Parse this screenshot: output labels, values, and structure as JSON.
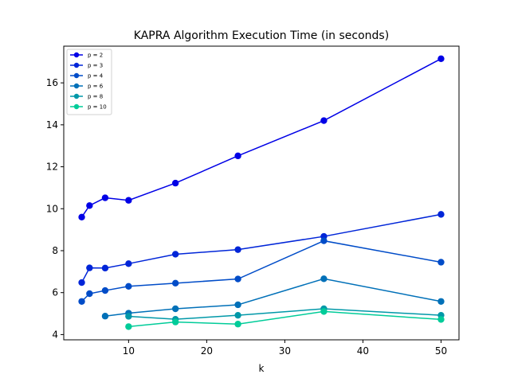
{
  "chart_data": {
    "type": "line",
    "title": "KAPRA Algorithm Execution Time (in seconds)",
    "xlabel": "k",
    "ylabel": "",
    "xlim": [
      1.7,
      52.3
    ],
    "ylim": [
      3.75,
      17.75
    ],
    "xticks": [
      10,
      20,
      30,
      40,
      50
    ],
    "yticks": [
      4,
      6,
      8,
      10,
      12,
      14,
      16
    ],
    "grid": false,
    "legend_position": "top-left",
    "series": [
      {
        "name": "p = 2",
        "color": "#0000e6",
        "x": [
          4,
          5,
          7,
          10,
          16,
          24,
          35,
          50
        ],
        "y": [
          9.6,
          10.15,
          10.52,
          10.4,
          11.22,
          12.52,
          14.2,
          17.15
        ]
      },
      {
        "name": "p = 3",
        "color": "#0025d8",
        "x": [
          4,
          5,
          7,
          10,
          16,
          24,
          35,
          50
        ],
        "y": [
          6.48,
          7.18,
          7.17,
          7.38,
          7.83,
          8.05,
          8.68,
          9.73
        ]
      },
      {
        "name": "p = 4",
        "color": "#004cc8",
        "x": [
          4,
          5,
          7,
          10,
          16,
          24,
          35,
          50
        ],
        "y": [
          5.58,
          5.95,
          6.1,
          6.3,
          6.45,
          6.65,
          8.47,
          7.45
        ]
      },
      {
        "name": "p = 6",
        "color": "#0070b8",
        "x": [
          7,
          10,
          16,
          24,
          35,
          50
        ],
        "y": [
          4.88,
          5.02,
          5.23,
          5.42,
          6.66,
          5.58
        ]
      },
      {
        "name": "p = 8",
        "color": "#0098a8",
        "x": [
          10,
          16,
          24,
          35,
          50
        ],
        "y": [
          4.87,
          4.73,
          4.92,
          5.23,
          4.92
        ]
      },
      {
        "name": "p = 10",
        "color": "#00cc99",
        "x": [
          10,
          16,
          24,
          35,
          50
        ],
        "y": [
          4.38,
          4.6,
          4.5,
          5.1,
          4.72
        ]
      }
    ]
  }
}
